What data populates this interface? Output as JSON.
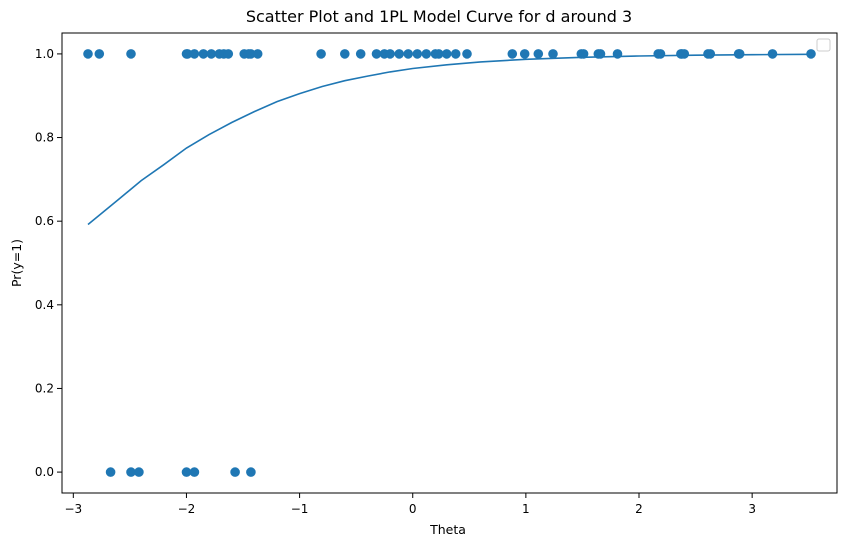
{
  "chart_data": {
    "type": "scatter",
    "title": "Scatter Plot and 1PL Model Curve for d around 3",
    "xlabel": "Theta",
    "ylabel": "Pr(y=1)",
    "xlim": [
      -3.1,
      3.75
    ],
    "ylim": [
      -0.05,
      1.05
    ],
    "x_ticks": [
      -3,
      -2,
      -1,
      0,
      1,
      2,
      3
    ],
    "x_tick_labels": [
      "−3",
      "−2",
      "−1",
      "0",
      "1",
      "2",
      "3"
    ],
    "y_ticks": [
      0.0,
      0.2,
      0.4,
      0.6,
      0.8,
      1.0
    ],
    "y_tick_labels": [
      "0.0",
      "0.2",
      "0.4",
      "0.6",
      "0.8",
      "1.0"
    ],
    "grid": false,
    "legend": {
      "placement": "top-right",
      "entries": []
    },
    "colors": {
      "series": "#1f77b4"
    },
    "series": [
      {
        "kind": "scatter",
        "points": [
          {
            "x": -2.87,
            "y": 1
          },
          {
            "x": -2.77,
            "y": 1
          },
          {
            "x": -2.49,
            "y": 1
          },
          {
            "x": -2.0,
            "y": 1
          },
          {
            "x": -1.99,
            "y": 1
          },
          {
            "x": -1.93,
            "y": 1
          },
          {
            "x": -1.85,
            "y": 1
          },
          {
            "x": -1.78,
            "y": 1
          },
          {
            "x": -1.71,
            "y": 1
          },
          {
            "x": -1.67,
            "y": 1
          },
          {
            "x": -1.63,
            "y": 1
          },
          {
            "x": -1.49,
            "y": 1
          },
          {
            "x": -1.45,
            "y": 1
          },
          {
            "x": -1.43,
            "y": 1
          },
          {
            "x": -1.37,
            "y": 1
          },
          {
            "x": -0.81,
            "y": 1
          },
          {
            "x": -0.6,
            "y": 1
          },
          {
            "x": -0.46,
            "y": 1
          },
          {
            "x": -0.32,
            "y": 1
          },
          {
            "x": -0.25,
            "y": 1
          },
          {
            "x": -0.2,
            "y": 1
          },
          {
            "x": -0.12,
            "y": 1
          },
          {
            "x": -0.04,
            "y": 1
          },
          {
            "x": 0.04,
            "y": 1
          },
          {
            "x": 0.12,
            "y": 1
          },
          {
            "x": 0.2,
            "y": 1
          },
          {
            "x": 0.23,
            "y": 1
          },
          {
            "x": 0.3,
            "y": 1
          },
          {
            "x": 0.38,
            "y": 1
          },
          {
            "x": 0.48,
            "y": 1
          },
          {
            "x": 0.88,
            "y": 1
          },
          {
            "x": 0.99,
            "y": 1
          },
          {
            "x": 1.11,
            "y": 1
          },
          {
            "x": 1.24,
            "y": 1
          },
          {
            "x": 1.49,
            "y": 1
          },
          {
            "x": 1.51,
            "y": 1
          },
          {
            "x": 1.64,
            "y": 1
          },
          {
            "x": 1.66,
            "y": 1
          },
          {
            "x": 1.81,
            "y": 1
          },
          {
            "x": 2.17,
            "y": 1
          },
          {
            "x": 2.19,
            "y": 1
          },
          {
            "x": 2.37,
            "y": 1
          },
          {
            "x": 2.38,
            "y": 1
          },
          {
            "x": 2.4,
            "y": 1
          },
          {
            "x": 2.61,
            "y": 1
          },
          {
            "x": 2.63,
            "y": 1
          },
          {
            "x": 2.88,
            "y": 1
          },
          {
            "x": 2.89,
            "y": 1
          },
          {
            "x": 3.18,
            "y": 1
          },
          {
            "x": 3.52,
            "y": 1
          },
          {
            "x": -2.67,
            "y": 0
          },
          {
            "x": -2.49,
            "y": 0
          },
          {
            "x": -2.42,
            "y": 0
          },
          {
            "x": -2.0,
            "y": 0
          },
          {
            "x": -1.93,
            "y": 0
          },
          {
            "x": -1.57,
            "y": 0
          },
          {
            "x": -1.43,
            "y": 0
          }
        ]
      },
      {
        "kind": "line",
        "points": [
          {
            "x": -2.87,
            "y": 0.592
          },
          {
            "x": -2.6,
            "y": 0.652
          },
          {
            "x": -2.4,
            "y": 0.697
          },
          {
            "x": -2.2,
            "y": 0.735
          },
          {
            "x": -2.0,
            "y": 0.775
          },
          {
            "x": -1.8,
            "y": 0.807
          },
          {
            "x": -1.6,
            "y": 0.836
          },
          {
            "x": -1.4,
            "y": 0.862
          },
          {
            "x": -1.2,
            "y": 0.886
          },
          {
            "x": -1.0,
            "y": 0.905
          },
          {
            "x": -0.8,
            "y": 0.922
          },
          {
            "x": -0.6,
            "y": 0.936
          },
          {
            "x": -0.4,
            "y": 0.947
          },
          {
            "x": -0.2,
            "y": 0.957
          },
          {
            "x": 0.0,
            "y": 0.965
          },
          {
            "x": 0.3,
            "y": 0.974
          },
          {
            "x": 0.6,
            "y": 0.981
          },
          {
            "x": 1.0,
            "y": 0.987
          },
          {
            "x": 1.5,
            "y": 0.992
          },
          {
            "x": 2.0,
            "y": 0.995
          },
          {
            "x": 2.5,
            "y": 0.997
          },
          {
            "x": 3.0,
            "y": 0.998
          },
          {
            "x": 3.52,
            "y": 0.999
          }
        ]
      }
    ]
  }
}
